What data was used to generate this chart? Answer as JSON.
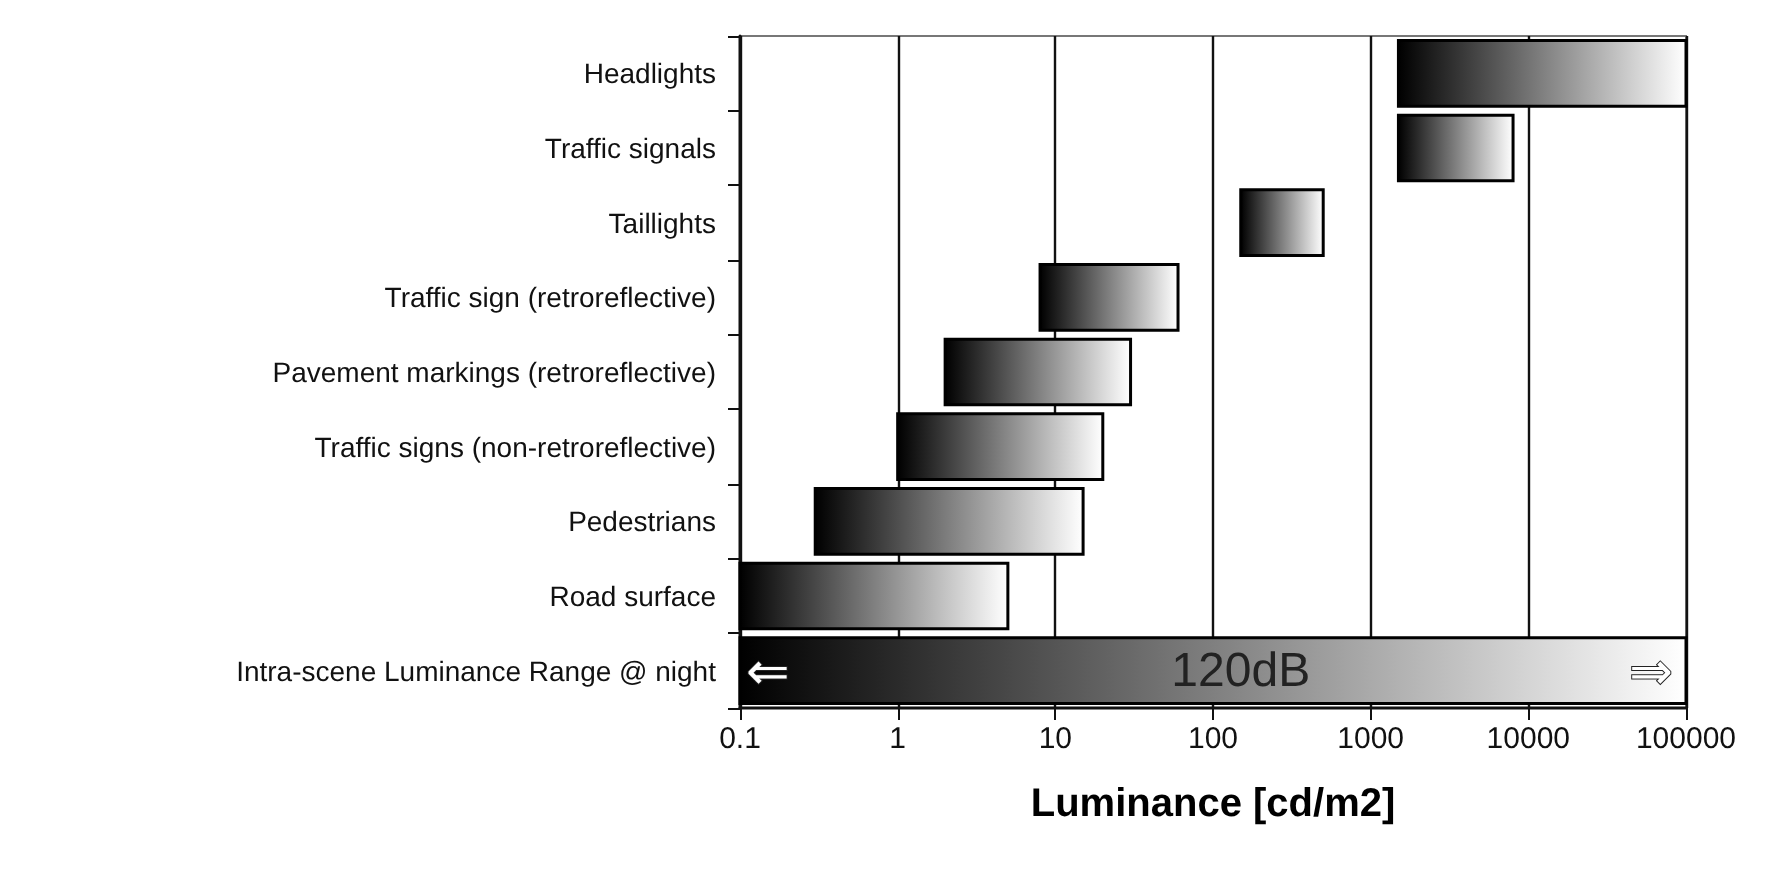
{
  "chart_data": {
    "type": "bar",
    "orientation": "horizontal",
    "log": "x",
    "categories": [
      "Headlights",
      "Traffic signals",
      "Taillights",
      "Traffic sign (retroreflective)",
      "Pavement markings (retroreflective)",
      "Traffic signs (non-retroreflective)",
      "Pedestrians",
      "Road surface",
      "Intra-scene Luminance Range @ night"
    ],
    "base": [
      1500,
      1500,
      150,
      8,
      2,
      1,
      0.3,
      0.1,
      0.1
    ],
    "values": [
      98500,
      6500,
      350,
      52,
      28,
      19,
      14.7,
      4.9,
      99999.9
    ],
    "color": "#000000",
    "xlim": [
      0.1,
      100000
    ],
    "xticks": [
      0.1,
      1,
      10,
      100,
      1000,
      10000,
      100000
    ],
    "xlabel": "Luminance [cd/m2]",
    "grid": "x",
    "annotations": [
      {
        "text": "120dB",
        "x": 150,
        "y": "Intra-scene Luminance Range @ night"
      },
      {
        "text": "⇐",
        "x": 0.15,
        "y": "Intra-scene Luminance Range @ night"
      },
      {
        "text": "⇒",
        "x": 60000,
        "y": "Intra-scene Luminance Range @ night"
      }
    ]
  }
}
